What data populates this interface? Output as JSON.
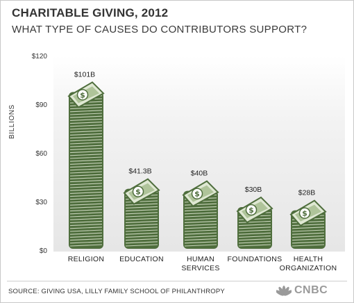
{
  "header": {
    "title": "CHARITABLE GIVING, 2012",
    "subtitle": "WHAT TYPE OF CAUSES DO CONTRIBUTORS SUPPORT?"
  },
  "footer": {
    "source": "SOURCE: GIVING USA, LILLY FAMILY SCHOOL OF PHILANTHROPY",
    "logo_text": "CNBC"
  },
  "colors": {
    "bill_dark": "#4f6e3d",
    "bill_light": "#dfe8d3",
    "bill_mid": "#8fab74"
  },
  "chart_data": {
    "type": "bar",
    "title": "CHARITABLE GIVING, 2012",
    "subtitle": "WHAT TYPE OF CAUSES DO CONTRIBUTORS SUPPORT?",
    "ylabel": "BILLIONS",
    "xlabel": "",
    "ylim": [
      0,
      120
    ],
    "yticks": [
      0,
      30,
      60,
      90,
      120
    ],
    "ytick_labels": [
      "$0",
      "$30",
      "$60",
      "$90",
      "$120"
    ],
    "grid": false,
    "categories": [
      [
        "RELIGION"
      ],
      [
        "EDUCATION"
      ],
      [
        "HUMAN",
        "SERVICES"
      ],
      [
        "FOUNDATIONS"
      ],
      [
        "HEALTH",
        "ORGANIZATION"
      ]
    ],
    "values": [
      101,
      41.3,
      40,
      30,
      28
    ],
    "value_labels": [
      "$101B",
      "$41.3B",
      "$40B",
      "$30B",
      "$28B"
    ]
  }
}
